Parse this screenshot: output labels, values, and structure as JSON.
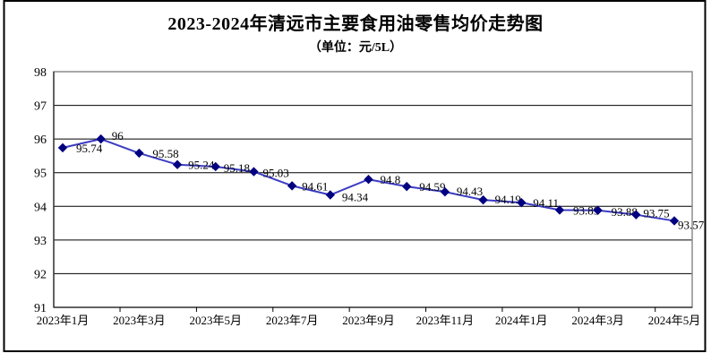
{
  "title": "2023-2024年清远市主要食用油零售均价走势图",
  "subtitle": "（单位：元/5L）",
  "chart_data": {
    "type": "line",
    "title": "2023-2024年清远市主要食用油零售均价走势图",
    "unit_label": "（单位：元/5L）",
    "categories": [
      "2023年1月",
      "2023年2月",
      "2023年3月",
      "2023年4月",
      "2023年5月",
      "2023年6月",
      "2023年7月",
      "2023年8月",
      "2023年9月",
      "2023年10月",
      "2023年11月",
      "2023年12月",
      "2024年1月",
      "2024年2月",
      "2024年3月",
      "2024年4月",
      "2024年5月"
    ],
    "values": [
      95.74,
      96,
      95.58,
      95.24,
      95.18,
      95.03,
      94.61,
      94.34,
      94.8,
      94.59,
      94.43,
      94.19,
      94.11,
      93.89,
      93.88,
      93.75,
      93.57
    ],
    "point_labels": [
      "95.74",
      "96",
      "95.58",
      "95.24",
      "95.18",
      "95.03",
      "94.61",
      "94.34",
      "94.8",
      "94.59",
      "94.43",
      "94.19",
      "94.11",
      "93.89",
      "93.88",
      "93.75",
      "93.57"
    ],
    "x_axis_tick_labels": [
      "2023年1月",
      "2023年3月",
      "2023年5月",
      "2023年7月",
      "2023年9月",
      "2023年11月",
      "2024年1月",
      "2024年3月",
      "2024年5月"
    ],
    "y_axis_tick_labels": [
      "98",
      "97",
      "96",
      "95",
      "94",
      "93",
      "92",
      "91"
    ],
    "ylim": [
      91,
      98
    ],
    "grid": true,
    "legend": "none",
    "line_color": "#3C3CC3",
    "marker_color": "#000080",
    "marker_shape": "diamond",
    "axis_color": "#000000",
    "plot_border_color": "#8C8C8C",
    "frame_color": "#000000",
    "text_color": "#000000"
  }
}
